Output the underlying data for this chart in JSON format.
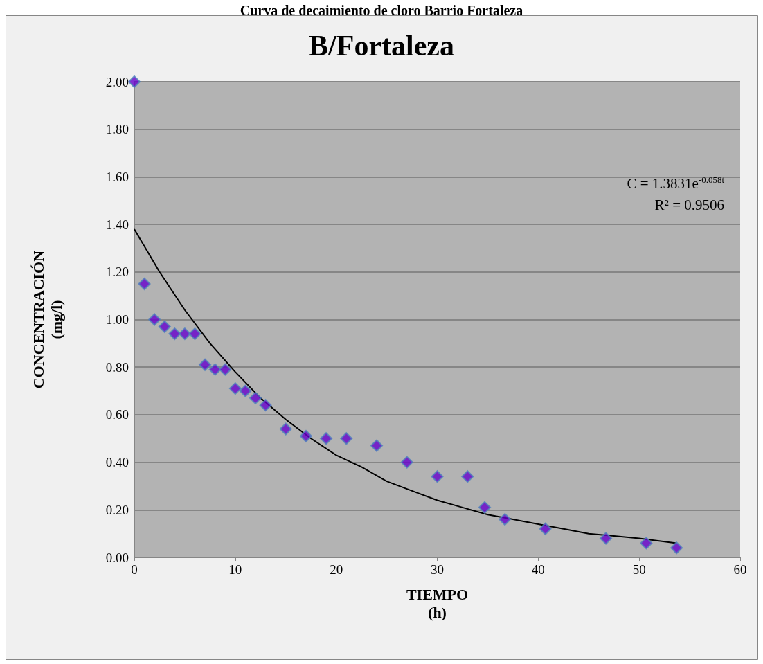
{
  "chart_data": {
    "type": "scatter",
    "title": "Curva de decaimiento de cloro Barrio Fortaleza",
    "subtitle": "B/Fortaleza",
    "xlabel": "TIEMPO\n(h)",
    "ylabel": "CONCENTRACIÓN\n(mg/l)",
    "annotations": [
      "C = 1.3831e$^{-0.058t}$",
      "R² = 0.9506"
    ],
    "series": [
      {
        "color": "#6600cc",
        "x": [
          0,
          1,
          2,
          3,
          4,
          5,
          6,
          7,
          8,
          9,
          10,
          11,
          12,
          13,
          15,
          17,
          19,
          21,
          24,
          27,
          30,
          33,
          34.7,
          36.7,
          40.7,
          46.7,
          50.7,
          53.7
        ],
        "values": [
          2.0,
          1.15,
          1.0,
          0.97,
          0.94,
          0.94,
          0.94,
          0.81,
          0.79,
          0.79,
          0.71,
          0.7,
          0.67,
          0.64,
          0.54,
          0.51,
          0.5,
          0.5,
          0.47,
          0.4,
          0.34,
          0.34,
          0.21,
          0.16,
          0.12,
          0.08,
          0.06,
          0.04
        ]
      },
      {
        "type": "line",
        "color": "#000000",
        "marker": "none",
        "x": [
          0,
          2.5,
          5,
          7.5,
          10,
          12.5,
          15,
          17.5,
          20,
          22.5,
          25,
          27.5,
          30,
          32.5,
          35,
          37.5,
          40,
          42.5,
          45,
          47.5,
          50,
          53.7
        ],
        "values": [
          1.38,
          1.2,
          1.04,
          0.9,
          0.78,
          0.67,
          0.58,
          0.5,
          0.43,
          0.38,
          0.32,
          0.28,
          0.24,
          0.21,
          0.18,
          0.16,
          0.14,
          0.12,
          0.1,
          0.09,
          0.08,
          0.06
        ]
      }
    ],
    "xlim": [
      0,
      60
    ],
    "xticks": [
      0,
      10,
      20,
      30,
      40,
      50,
      60
    ],
    "ylim": [
      0,
      2
    ],
    "yticks": [
      {
        "value": 0,
        "label": "0.00"
      },
      {
        "value": 0.2,
        "label": "0.20"
      },
      {
        "value": 0.4,
        "label": "0.40"
      },
      {
        "value": 0.6,
        "label": "0.60"
      },
      {
        "value": 0.8,
        "label": "0.80"
      },
      {
        "value": 1,
        "label": "1.00"
      },
      {
        "value": 1.2,
        "label": "1.20"
      },
      {
        "value": 1.4,
        "label": "1.40"
      },
      {
        "value": 1.6,
        "label": "1.60"
      },
      {
        "value": 1.8,
        "label": "1.80"
      },
      {
        "value": 2,
        "label": "2.00"
      }
    ],
    "grid": "y",
    "marker": "diamond"
  }
}
